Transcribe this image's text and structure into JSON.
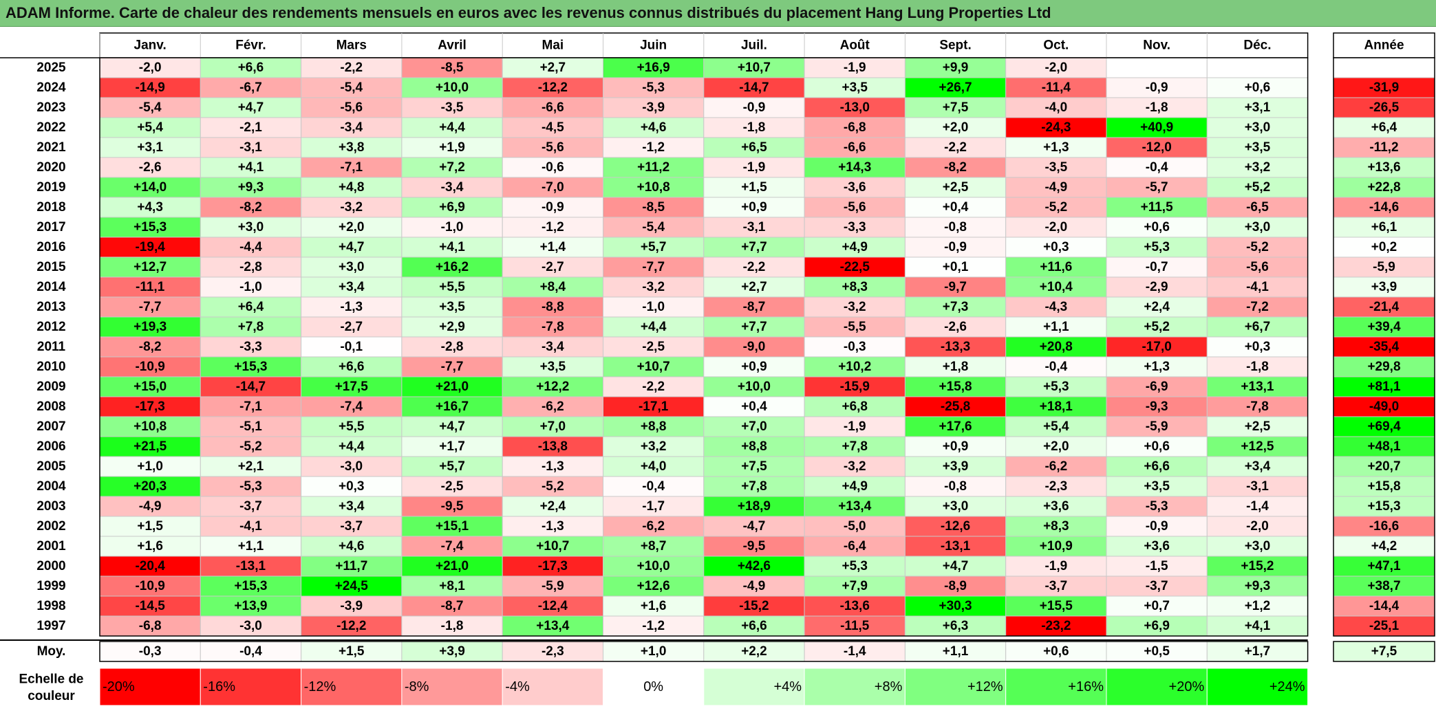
{
  "title": "ADAM Informe. Carte de chaleur des rendements mensuels en euros avec les revenus connus distribués du placement Hang Lung Properties Ltd",
  "chart_data": {
    "type": "heatmap",
    "columns": [
      "Janv.",
      "Févr.",
      "Mars",
      "Avril",
      "Mai",
      "Juin",
      "Juil.",
      "Août",
      "Sept.",
      "Oct.",
      "Nov.",
      "Déc."
    ],
    "annual_header": "Année",
    "average_label": "Moy.",
    "scale_label_line1": "Echelle de",
    "scale_label_line2": "couleur",
    "rows": [
      {
        "year": "2025",
        "values": [
          -2.0,
          6.6,
          -2.2,
          -8.5,
          2.7,
          16.9,
          10.7,
          -1.9,
          9.9,
          -2.0,
          null,
          null
        ],
        "annual": null
      },
      {
        "year": "2024",
        "values": [
          -14.9,
          -6.7,
          -5.4,
          10.0,
          -12.2,
          -5.3,
          -14.7,
          3.5,
          26.7,
          -11.4,
          -0.9,
          0.6
        ],
        "annual": -31.9
      },
      {
        "year": "2023",
        "values": [
          -5.4,
          4.7,
          -5.6,
          -3.5,
          -6.6,
          -3.9,
          -0.9,
          -13.0,
          7.5,
          -4.0,
          -1.8,
          3.1
        ],
        "annual": -26.5
      },
      {
        "year": "2022",
        "values": [
          5.4,
          -2.1,
          -3.4,
          4.4,
          -4.5,
          4.6,
          -1.8,
          -6.8,
          2.0,
          -24.3,
          40.9,
          3.0
        ],
        "annual": 6.4
      },
      {
        "year": "2021",
        "values": [
          3.1,
          -3.1,
          3.8,
          1.9,
          -5.6,
          -1.2,
          6.5,
          -6.6,
          -2.2,
          1.3,
          -12.0,
          3.5
        ],
        "annual": -11.2
      },
      {
        "year": "2020",
        "values": [
          -2.6,
          4.1,
          -7.1,
          7.2,
          -0.6,
          11.2,
          -1.9,
          14.3,
          -8.2,
          -3.5,
          -0.4,
          3.2
        ],
        "annual": 13.6
      },
      {
        "year": "2019",
        "values": [
          14.0,
          9.3,
          4.8,
          -3.4,
          -7.0,
          10.8,
          1.5,
          -3.6,
          2.5,
          -4.9,
          -5.7,
          5.2
        ],
        "annual": 22.8
      },
      {
        "year": "2018",
        "values": [
          4.3,
          -8.2,
          -3.2,
          6.9,
          -0.9,
          -8.5,
          0.9,
          -5.6,
          0.4,
          -5.2,
          11.5,
          -6.5
        ],
        "annual": -14.6
      },
      {
        "year": "2017",
        "values": [
          15.3,
          3.0,
          2.0,
          -1.0,
          -1.2,
          -5.4,
          -3.1,
          -3.3,
          -0.8,
          -2.0,
          0.6,
          3.0
        ],
        "annual": 6.1
      },
      {
        "year": "2016",
        "values": [
          -19.4,
          -4.4,
          4.7,
          4.1,
          1.4,
          5.7,
          7.7,
          4.9,
          -0.9,
          0.3,
          5.3,
          -5.2
        ],
        "annual": 0.2
      },
      {
        "year": "2015",
        "values": [
          12.7,
          -2.8,
          3.0,
          16.2,
          -2.7,
          -7.7,
          -2.2,
          -22.5,
          0.1,
          11.6,
          -0.7,
          -5.6
        ],
        "annual": -5.9
      },
      {
        "year": "2014",
        "values": [
          -11.1,
          -1.0,
          3.4,
          5.5,
          8.4,
          -3.2,
          2.7,
          8.3,
          -9.7,
          10.4,
          -2.9,
          -4.1
        ],
        "annual": 3.9
      },
      {
        "year": "2013",
        "values": [
          -7.7,
          6.4,
          -1.3,
          3.5,
          -8.8,
          -1.0,
          -8.7,
          -3.2,
          7.3,
          -4.3,
          2.4,
          -7.2
        ],
        "annual": -21.4
      },
      {
        "year": "2012",
        "values": [
          19.3,
          7.8,
          -2.7,
          2.9,
          -7.8,
          4.4,
          7.7,
          -5.5,
          -2.6,
          1.1,
          5.2,
          6.7
        ],
        "annual": 39.4
      },
      {
        "year": "2011",
        "values": [
          -8.2,
          -3.3,
          -0.1,
          -2.8,
          -3.4,
          -2.5,
          -9.0,
          -0.3,
          -13.3,
          20.8,
          -17.0,
          0.3
        ],
        "annual": -35.4
      },
      {
        "year": "2010",
        "values": [
          -10.9,
          15.3,
          6.6,
          -7.7,
          3.5,
          10.7,
          0.9,
          10.2,
          1.8,
          -0.4,
          1.3,
          -1.8
        ],
        "annual": 29.8
      },
      {
        "year": "2009",
        "values": [
          15.0,
          -14.7,
          17.5,
          21.0,
          12.2,
          -2.2,
          10.0,
          -15.9,
          15.8,
          5.3,
          -6.9,
          13.1
        ],
        "annual": 81.1
      },
      {
        "year": "2008",
        "values": [
          -17.3,
          -7.1,
          -7.4,
          16.7,
          -6.2,
          -17.1,
          0.4,
          6.8,
          -25.8,
          18.1,
          -9.3,
          -7.8
        ],
        "annual": -49.0
      },
      {
        "year": "2007",
        "values": [
          10.8,
          -5.1,
          5.5,
          4.7,
          7.0,
          8.8,
          7.0,
          -1.9,
          17.6,
          5.4,
          -5.9,
          2.5
        ],
        "annual": 69.4
      },
      {
        "year": "2006",
        "values": [
          21.5,
          -5.2,
          4.4,
          1.7,
          -13.8,
          3.2,
          8.8,
          7.8,
          0.9,
          2.0,
          0.6,
          12.5
        ],
        "annual": 48.1
      },
      {
        "year": "2005",
        "values": [
          1.0,
          2.1,
          -3.0,
          5.7,
          -1.3,
          4.0,
          7.5,
          -3.2,
          3.9,
          -6.2,
          6.6,
          3.4
        ],
        "annual": 20.7
      },
      {
        "year": "2004",
        "values": [
          20.3,
          -5.3,
          0.3,
          -2.5,
          -5.2,
          -0.4,
          7.8,
          4.9,
          -0.8,
          -2.3,
          3.5,
          -3.1
        ],
        "annual": 15.8
      },
      {
        "year": "2003",
        "values": [
          -4.9,
          -3.7,
          3.4,
          -9.5,
          2.4,
          -1.7,
          18.9,
          13.4,
          3.0,
          3.6,
          -5.3,
          -1.4
        ],
        "annual": 15.3
      },
      {
        "year": "2002",
        "values": [
          1.5,
          -4.1,
          -3.7,
          15.1,
          -1.3,
          -6.2,
          -4.7,
          -5.0,
          -12.6,
          8.3,
          -0.9,
          -2.0
        ],
        "annual": -16.6
      },
      {
        "year": "2001",
        "values": [
          1.6,
          1.1,
          4.6,
          -7.4,
          10.7,
          8.7,
          -9.5,
          -6.4,
          -13.1,
          10.9,
          3.6,
          3.0
        ],
        "annual": 4.2
      },
      {
        "year": "2000",
        "values": [
          -20.4,
          -13.1,
          11.7,
          21.0,
          -17.3,
          10.0,
          42.6,
          5.3,
          4.7,
          -1.9,
          -1.5,
          15.2
        ],
        "annual": 47.1
      },
      {
        "year": "1999",
        "values": [
          -10.9,
          15.3,
          24.5,
          8.1,
          -5.9,
          12.6,
          -4.9,
          7.9,
          -8.9,
          -3.7,
          -3.7,
          9.3
        ],
        "annual": 38.7
      },
      {
        "year": "1998",
        "values": [
          -14.5,
          13.9,
          -3.9,
          -8.7,
          -12.4,
          1.6,
          -15.2,
          -13.6,
          30.3,
          15.5,
          0.7,
          1.2
        ],
        "annual": -14.4
      },
      {
        "year": "1997",
        "values": [
          -6.8,
          -3.0,
          -12.2,
          -1.8,
          13.4,
          -1.2,
          6.6,
          -11.5,
          6.3,
          -23.2,
          6.9,
          4.1
        ],
        "annual": -25.1
      }
    ],
    "average": {
      "values": [
        -0.3,
        -0.4,
        1.5,
        3.9,
        -2.3,
        1.0,
        2.2,
        -1.4,
        1.1,
        0.6,
        0.5,
        1.7
      ],
      "annual": 7.5
    },
    "scale": [
      {
        "label": "-20%",
        "value": -20
      },
      {
        "label": "-16%",
        "value": -16
      },
      {
        "label": "-12%",
        "value": -12
      },
      {
        "label": "-8%",
        "value": -8
      },
      {
        "label": "-4%",
        "value": -4
      },
      {
        "label": "0%",
        "value": 0
      },
      {
        "label": "+4%",
        "value": 4
      },
      {
        "label": "+8%",
        "value": 8
      },
      {
        "label": "+12%",
        "value": 12
      },
      {
        "label": "+16%",
        "value": 16
      },
      {
        "label": "+20%",
        "value": 20
      },
      {
        "label": "+24%",
        "value": 24
      }
    ]
  },
  "colors": {
    "title_background": "#7ec97e",
    "negative_max": "#ff0000",
    "neutral": "#ffffff",
    "positive_max": "#00ff00",
    "grid": "#c8c8c8",
    "border": "#000000"
  }
}
